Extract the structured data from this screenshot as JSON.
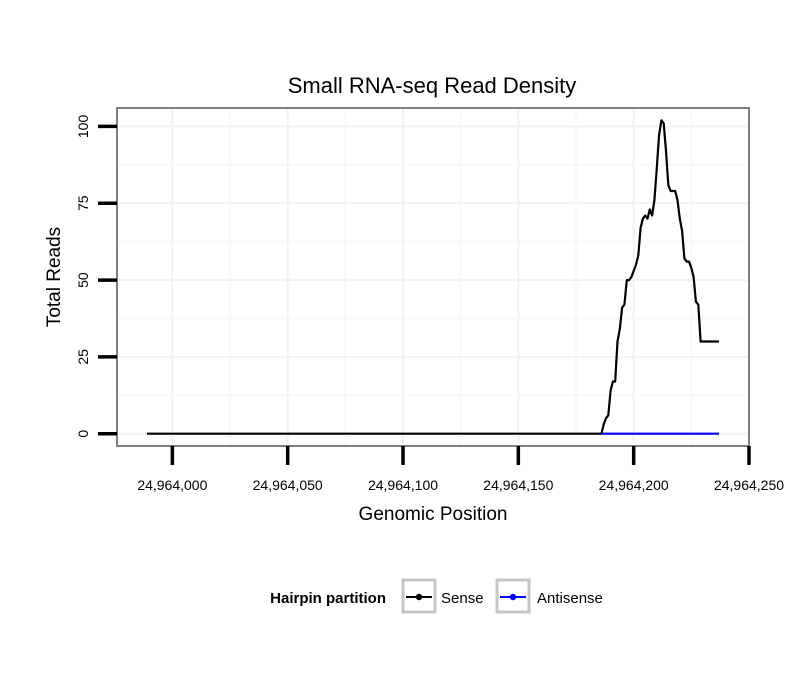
{
  "chart_data": {
    "type": "line",
    "title": "Small RNA-seq Read Density",
    "xlabel": "Genomic Position",
    "ylabel": "Total Reads",
    "xlim": [
      24963976,
      24964250
    ],
    "ylim": [
      -4,
      106
    ],
    "x_ticks": [
      24964000,
      24964050,
      24964100,
      24964150,
      24964200,
      24964250
    ],
    "x_tick_labels": [
      "24,964,000",
      "24,964,050",
      "24,964,100",
      "24,964,150",
      "24,964,200",
      "24,964,250"
    ],
    "y_ticks": [
      0,
      25,
      50,
      75,
      100
    ],
    "y_tick_labels": [
      "0",
      "25",
      "50",
      "75",
      "100"
    ],
    "grid": true,
    "legend": {
      "title": "Hairpin partition",
      "position": "bottom",
      "entries": [
        "Sense",
        "Antisense"
      ]
    },
    "series": [
      {
        "name": "Sense",
        "color": "#000000",
        "x": [
          24963989,
          24964186,
          24964187,
          24964188,
          24964189,
          24964190,
          24964191,
          24964192,
          24964193,
          24964194,
          24964195,
          24964196,
          24964197,
          24964198,
          24964199,
          24964200,
          24964201,
          24964202,
          24964203,
          24964204,
          24964205,
          24964206,
          24964207,
          24964208,
          24964209,
          24964210,
          24964211,
          24964212,
          24964213,
          24964214,
          24964215,
          24964216,
          24964217,
          24964218,
          24964219,
          24964220,
          24964221,
          24964222,
          24964223,
          24964224,
          24964225,
          24964226,
          24964227,
          24964228,
          24964229,
          24964230,
          24964231,
          24964232,
          24964233,
          24964234,
          24964235,
          24964236,
          24964237
        ],
        "values": [
          0,
          0,
          3,
          5,
          6,
          14,
          17,
          17,
          30,
          34,
          41,
          42,
          50,
          50,
          51,
          53,
          55,
          58,
          67,
          70,
          71,
          70,
          73,
          71,
          76,
          86,
          97,
          102,
          101,
          92,
          81,
          79,
          79,
          79,
          76,
          70,
          66,
          57,
          56,
          56,
          54,
          51,
          43,
          42,
          30,
          30,
          30,
          30,
          30,
          30,
          30,
          30,
          30
        ]
      },
      {
        "name": "Antisense",
        "color": "#0000ff",
        "x": [
          24964186,
          24964237
        ],
        "values": [
          0,
          0
        ]
      }
    ]
  }
}
